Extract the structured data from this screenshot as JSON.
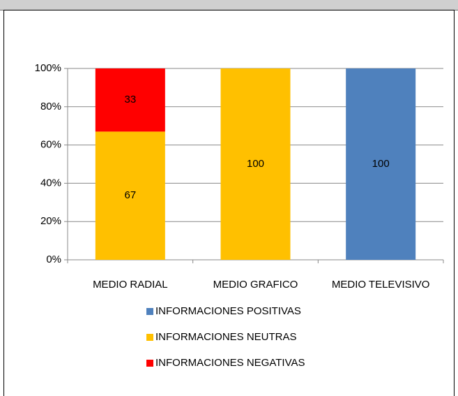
{
  "chart_data": {
    "type": "stacked_bar",
    "categories": [
      "MEDIO RADIAL",
      "MEDIO GRAFICO",
      "MEDIO TELEVISIVO"
    ],
    "series": [
      {
        "name": "INFORMACIONES  POSITIVAS",
        "color": "#4f81bd",
        "values": [
          0,
          0,
          100
        ]
      },
      {
        "name": "INFORMACIONES  NEUTRAS",
        "color": "#ffc000",
        "values": [
          67,
          100,
          0
        ]
      },
      {
        "name": "INFORMACIONES  NEGATIVAS",
        "color": "#ff0000",
        "values": [
          33,
          0,
          0
        ]
      }
    ],
    "ylim": [
      0,
      100
    ],
    "yticks": [
      {
        "value": 0,
        "label": "0%"
      },
      {
        "value": 20,
        "label": "20%"
      },
      {
        "value": 40,
        "label": "40%"
      },
      {
        "value": 60,
        "label": "60%"
      },
      {
        "value": 80,
        "label": "80%"
      },
      {
        "value": 100,
        "label": "100%"
      }
    ],
    "grid": true,
    "legend": "bottom"
  }
}
